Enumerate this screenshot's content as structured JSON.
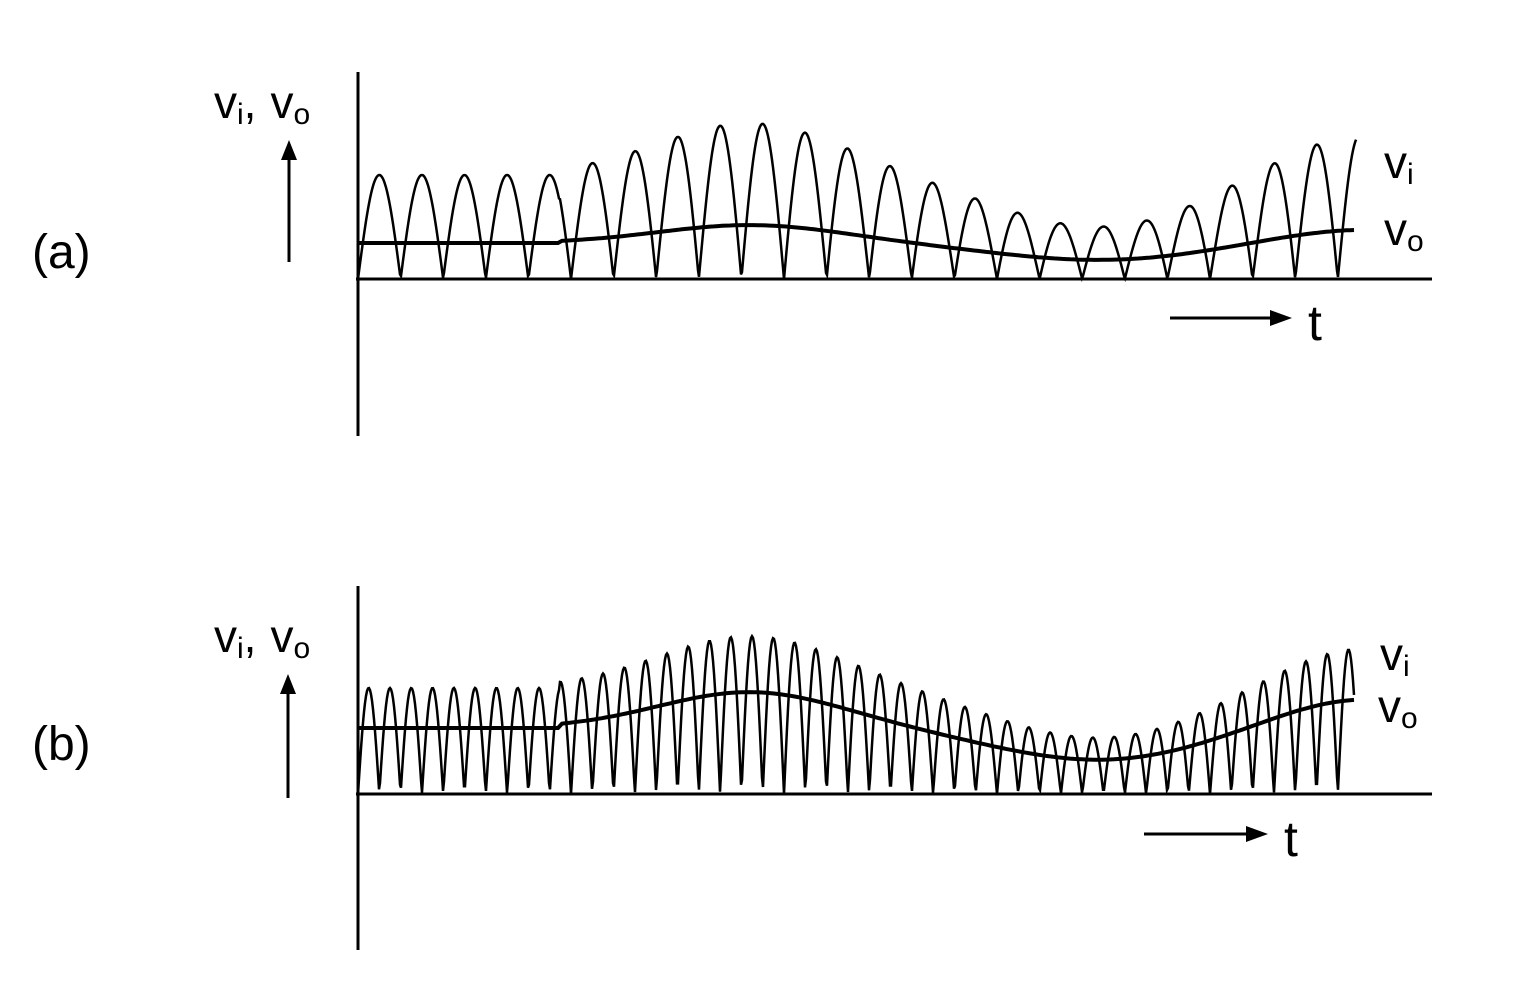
{
  "panels": [
    {
      "label": "(a)",
      "axis_label": {
        "v1": "v",
        "s1": "i",
        "sep": ",",
        "v2": "v",
        "s2": "o"
      },
      "vi_label": {
        "v": "v",
        "s": "i"
      },
      "vo_label": {
        "v": "v",
        "s": "o"
      },
      "t_label": "t"
    },
    {
      "label": "(b)",
      "axis_label": {
        "v1": "v",
        "s1": "i",
        "sep": ",",
        "v2": "v",
        "s2": "o"
      },
      "vi_label": {
        "v": "v",
        "s": "i"
      },
      "vo_label": {
        "v": "v",
        "s": "o"
      },
      "t_label": "t"
    }
  ]
}
